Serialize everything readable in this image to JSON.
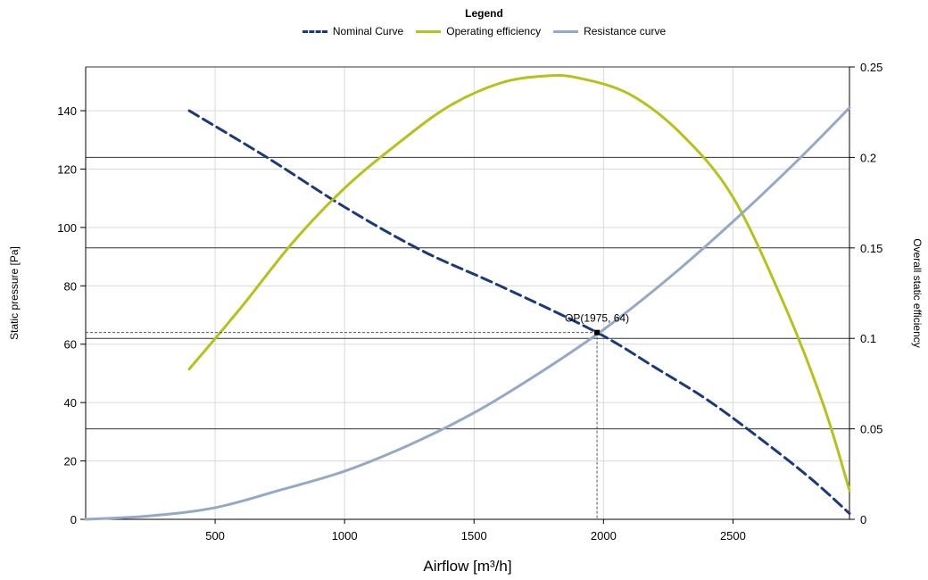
{
  "legend": {
    "title": "Legend",
    "items": [
      {
        "label": "Nominal Curve",
        "color": "#1a3a7a",
        "style": "dashed"
      },
      {
        "label": "Operating efficiency",
        "color": "#b5c21a",
        "style": "solid"
      },
      {
        "label": "Resistance curve",
        "color": "#94a8c8",
        "style": "solid"
      }
    ]
  },
  "chart_data": {
    "type": "line",
    "title": "",
    "xlabel": "Airflow [m³/h]",
    "ylabel_left": "Static pressure [Pa]",
    "ylabel_right": "Overall static efficiency",
    "xlim": [
      0,
      2950
    ],
    "ylim_left": [
      0,
      155
    ],
    "ylim_right": [
      0,
      0.25
    ],
    "x_ticks": [
      500,
      1000,
      1500,
      2000,
      2500
    ],
    "y_left_ticks": [
      0,
      20,
      40,
      60,
      80,
      100,
      120,
      140
    ],
    "y_right_ticks": [
      0,
      0.05,
      0.1,
      0.15,
      0.2,
      0.25
    ],
    "y_right_tick_labels": [
      "0",
      "0.05",
      "0.1",
      "0.15",
      "0.2",
      "0.25"
    ],
    "grid": true,
    "legend_position": "top-center",
    "series": [
      {
        "name": "Nominal Curve",
        "axis": "left",
        "color": "#1a3a7a",
        "dash": "12,6",
        "x": [
          400,
          700,
          1000,
          1300,
          1600,
          1975,
          2200,
          2400,
          2600,
          2800,
          2950
        ],
        "y": [
          140,
          124,
          107,
          92,
          80,
          64,
          52,
          41,
          28,
          14,
          2
        ]
      },
      {
        "name": "Operating efficiency",
        "axis": "right",
        "color": "#b5c21a",
        "dash": "",
        "x": [
          400,
          600,
          800,
          1000,
          1200,
          1400,
          1600,
          1775,
          1900,
          2100,
          2300,
          2500,
          2700,
          2850,
          2950
        ],
        "y": [
          0.083,
          0.117,
          0.153,
          0.183,
          0.207,
          0.228,
          0.241,
          0.245,
          0.244,
          0.235,
          0.213,
          0.178,
          0.118,
          0.063,
          0.016
        ]
      },
      {
        "name": "Resistance curve",
        "axis": "left",
        "color": "#94a8c8",
        "dash": "",
        "x": [
          0,
          250,
          500,
          750,
          1000,
          1250,
          1500,
          1750,
          2000,
          2250,
          2500,
          2750,
          2950
        ],
        "y": [
          0,
          1.2,
          4.0,
          10.0,
          16.5,
          25.5,
          36.5,
          50.0,
          65.0,
          82.5,
          102.0,
          123.0,
          141.0
        ]
      }
    ],
    "operating_point": {
      "label": "OP(1975, 64)",
      "x": 1975,
      "y": 64
    }
  }
}
